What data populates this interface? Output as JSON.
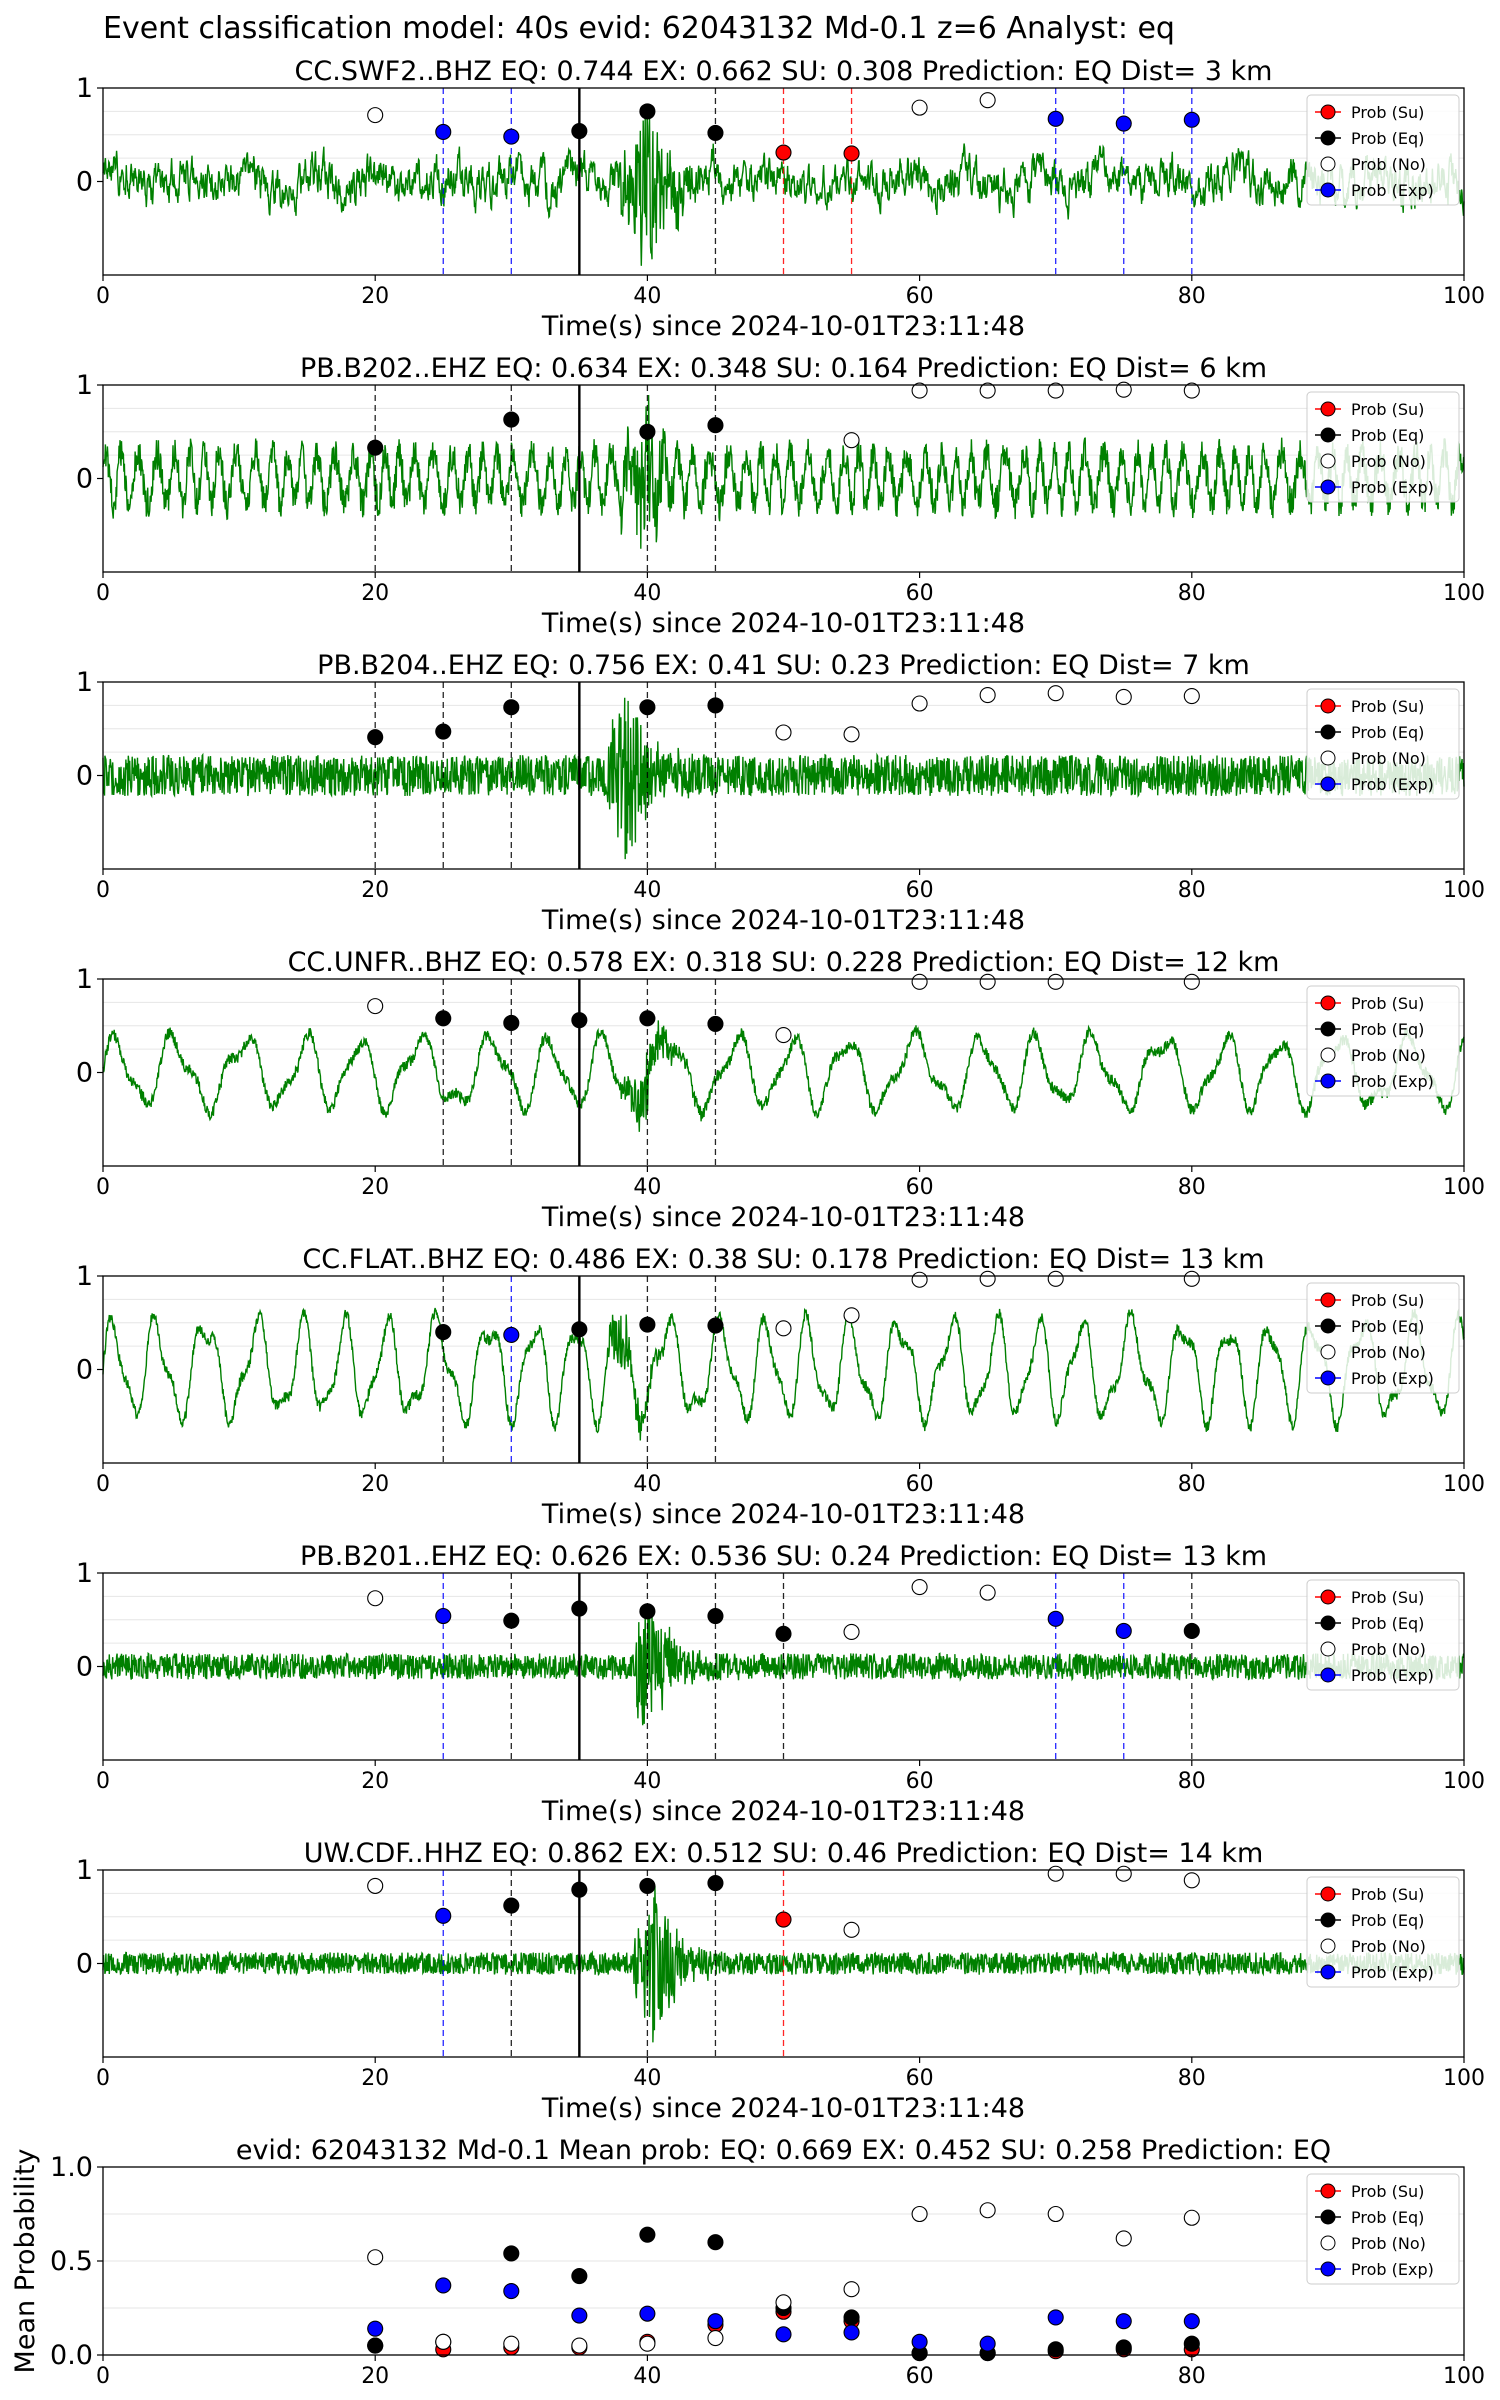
{
  "figure_title": "Event classification model: 40s evid: 62043132 Md-0.1 z=6 Analyst: eq",
  "colors": {
    "waveform": "#008000",
    "su": "#ff0000",
    "eq": "#000000",
    "no": "#ffffff",
    "exp": "#0000ff",
    "pick_line": "#000000"
  },
  "legend_labels": [
    "Prob (Su)",
    "Prob (Eq)",
    "Prob (No)",
    "Prob (Exp)"
  ],
  "chart_data": [
    {
      "type": "scatter",
      "title": "CC.SWF2..BHZ   EQ: 0.744  EX: 0.662  SU: 0.308   Prediction: EQ    Dist= 3 km",
      "xlabel": "Time(s) since 2024-10-01T23:11:48",
      "ylabel": "",
      "xlim": [
        0,
        100
      ],
      "ylim": [
        -1,
        1
      ],
      "xticks": [
        "0",
        "20",
        "40",
        "60",
        "80",
        "100"
      ],
      "yticks": [
        "1",
        "0"
      ],
      "pick_time": 35,
      "waveform": {
        "style": "broadband",
        "burst_start": 38,
        "burst_peak": 40,
        "amp": 0.28,
        "burst_amp": 0.9
      },
      "series": [
        {
          "name": "Prob (Su)",
          "x": [
            50,
            55
          ],
          "y": [
            0.31,
            0.3
          ]
        },
        {
          "name": "Prob (Eq)",
          "x": [
            35,
            40,
            45
          ],
          "y": [
            0.54,
            0.75,
            0.52
          ]
        },
        {
          "name": "Prob (No)",
          "x": [
            20,
            60,
            65
          ],
          "y": [
            0.71,
            0.79,
            0.87
          ]
        },
        {
          "name": "Prob (Exp)",
          "x": [
            25,
            30,
            70,
            75,
            80
          ],
          "y": [
            0.53,
            0.48,
            0.67,
            0.62,
            0.66
          ]
        }
      ],
      "vlines": [
        {
          "x": 25,
          "color": "exp"
        },
        {
          "x": 30,
          "color": "exp"
        },
        {
          "x": 45,
          "color": "eq"
        },
        {
          "x": 50,
          "color": "su"
        },
        {
          "x": 55,
          "color": "su"
        },
        {
          "x": 70,
          "color": "exp"
        },
        {
          "x": 75,
          "color": "exp"
        },
        {
          "x": 80,
          "color": "exp"
        }
      ]
    },
    {
      "type": "scatter",
      "title": "PB.B202..EHZ   EQ: 0.634  EX: 0.348  SU: 0.164   Prediction: EQ    Dist= 6 km",
      "xlabel": "Time(s) since 2024-10-01T23:11:48",
      "ylabel": "",
      "xlim": [
        0,
        100
      ],
      "ylim": [
        -1,
        1
      ],
      "xticks": [
        "0",
        "20",
        "40",
        "60",
        "80",
        "100"
      ],
      "yticks": [
        "1",
        "0"
      ],
      "pick_time": 35,
      "waveform": {
        "style": "oscillating",
        "period": 1.2,
        "burst_start": 38,
        "burst_peak": 40,
        "amp": 0.38,
        "burst_amp": 0.75
      },
      "series": [
        {
          "name": "Prob (Su)",
          "x": [],
          "y": []
        },
        {
          "name": "Prob (Eq)",
          "x": [
            20,
            30,
            40,
            45
          ],
          "y": [
            0.33,
            0.63,
            0.5,
            0.57
          ]
        },
        {
          "name": "Prob (No)",
          "x": [
            55,
            60,
            65,
            70,
            75,
            80
          ],
          "y": [
            0.41,
            0.94,
            0.94,
            0.94,
            0.95,
            0.94
          ]
        },
        {
          "name": "Prob (Exp)",
          "x": [],
          "y": []
        }
      ],
      "vlines": [
        {
          "x": 20,
          "color": "eq"
        },
        {
          "x": 30,
          "color": "eq"
        },
        {
          "x": 40,
          "color": "eq"
        },
        {
          "x": 45,
          "color": "eq"
        }
      ]
    },
    {
      "type": "scatter",
      "title": "PB.B204..EHZ   EQ: 0.756  EX: 0.41  SU: 0.23   Prediction: EQ    Dist= 7 km",
      "xlabel": "Time(s) since 2024-10-01T23:11:48",
      "ylabel": "",
      "xlim": [
        0,
        100
      ],
      "ylim": [
        -1,
        1
      ],
      "xticks": [
        "0",
        "20",
        "40",
        "60",
        "80",
        "100"
      ],
      "yticks": [
        "1",
        "0"
      ],
      "pick_time": 35,
      "waveform": {
        "style": "noisy",
        "burst_start": 37,
        "burst_peak": 38.5,
        "amp": 0.22,
        "burst_amp": 0.9
      },
      "series": [
        {
          "name": "Prob (Su)",
          "x": [],
          "y": []
        },
        {
          "name": "Prob (Eq)",
          "x": [
            20,
            25,
            30,
            40,
            45
          ],
          "y": [
            0.41,
            0.47,
            0.73,
            0.73,
            0.75
          ]
        },
        {
          "name": "Prob (No)",
          "x": [
            50,
            55,
            60,
            65,
            70,
            75,
            80
          ],
          "y": [
            0.46,
            0.44,
            0.77,
            0.86,
            0.88,
            0.84,
            0.85
          ]
        },
        {
          "name": "Prob (Exp)",
          "x": [],
          "y": []
        }
      ],
      "vlines": [
        {
          "x": 20,
          "color": "eq"
        },
        {
          "x": 25,
          "color": "eq"
        },
        {
          "x": 30,
          "color": "eq"
        },
        {
          "x": 40,
          "color": "eq"
        },
        {
          "x": 45,
          "color": "eq"
        }
      ]
    },
    {
      "type": "scatter",
      "title": "CC.UNFR..BHZ   EQ: 0.578  EX: 0.318  SU: 0.228   Prediction: EQ    Dist= 12 km",
      "xlabel": "Time(s) since 2024-10-01T23:11:48",
      "ylabel": "",
      "xlim": [
        0,
        100
      ],
      "ylim": [
        -1,
        1
      ],
      "xticks": [
        "0",
        "20",
        "40",
        "60",
        "80",
        "100"
      ],
      "yticks": [
        "1",
        "0"
      ],
      "pick_time": 35,
      "waveform": {
        "style": "swell",
        "period": 4.5,
        "burst_start": 38,
        "burst_peak": 40,
        "amp": 0.45,
        "burst_amp": 0.35
      },
      "series": [
        {
          "name": "Prob (Su)",
          "x": [],
          "y": []
        },
        {
          "name": "Prob (Eq)",
          "x": [
            25,
            30,
            35,
            40,
            45
          ],
          "y": [
            0.58,
            0.53,
            0.56,
            0.58,
            0.52
          ]
        },
        {
          "name": "Prob (No)",
          "x": [
            20,
            50,
            60,
            65,
            70,
            80
          ],
          "y": [
            0.71,
            0.4,
            0.97,
            0.97,
            0.97,
            0.97
          ]
        },
        {
          "name": "Prob (Exp)",
          "x": [],
          "y": []
        }
      ],
      "vlines": [
        {
          "x": 25,
          "color": "eq"
        },
        {
          "x": 30,
          "color": "eq"
        },
        {
          "x": 40,
          "color": "eq"
        },
        {
          "x": 45,
          "color": "eq"
        }
      ]
    },
    {
      "type": "scatter",
      "title": "CC.FLAT..BHZ   EQ: 0.486  EX: 0.38  SU: 0.178   Prediction: EQ    Dist= 13 km",
      "xlabel": "Time(s) since 2024-10-01T23:11:48",
      "ylabel": "",
      "xlim": [
        0,
        100
      ],
      "ylim": [
        -1,
        1
      ],
      "xticks": [
        "0",
        "20",
        "40",
        "60",
        "80",
        "100"
      ],
      "yticks": [
        "1",
        "0"
      ],
      "pick_time": 35,
      "waveform": {
        "style": "swell",
        "period": 3.4,
        "burst_start": 37,
        "burst_peak": 38,
        "amp": 0.62,
        "burst_amp": 0.35
      },
      "series": [
        {
          "name": "Prob (Su)",
          "x": [],
          "y": []
        },
        {
          "name": "Prob (Eq)",
          "x": [
            25,
            35,
            40,
            45
          ],
          "y": [
            0.4,
            0.43,
            0.48,
            0.47
          ]
        },
        {
          "name": "Prob (No)",
          "x": [
            50,
            55,
            60,
            65,
            70,
            80
          ],
          "y": [
            0.44,
            0.58,
            0.96,
            0.97,
            0.97,
            0.97
          ]
        },
        {
          "name": "Prob (Exp)",
          "x": [
            30
          ],
          "y": [
            0.37
          ]
        }
      ],
      "vlines": [
        {
          "x": 25,
          "color": "eq"
        },
        {
          "x": 30,
          "color": "exp"
        },
        {
          "x": 40,
          "color": "eq"
        },
        {
          "x": 45,
          "color": "eq"
        }
      ]
    },
    {
      "type": "scatter",
      "title": "PB.B201..EHZ   EQ: 0.626  EX: 0.536  SU: 0.24   Prediction: EQ    Dist= 13 km",
      "xlabel": "Time(s) since 2024-10-01T23:11:48",
      "ylabel": "",
      "xlim": [
        0,
        100
      ],
      "ylim": [
        -1,
        1
      ],
      "xticks": [
        "0",
        "20",
        "40",
        "60",
        "80",
        "100"
      ],
      "yticks": [
        "1",
        "0"
      ],
      "pick_time": 35,
      "waveform": {
        "style": "noisy",
        "burst_start": 39,
        "burst_peak": 40,
        "amp": 0.14,
        "burst_amp": 0.85
      },
      "series": [
        {
          "name": "Prob (Su)",
          "x": [],
          "y": []
        },
        {
          "name": "Prob (Eq)",
          "x": [
            30,
            35,
            40,
            45,
            50,
            80
          ],
          "y": [
            0.49,
            0.62,
            0.59,
            0.54,
            0.35,
            0.38
          ]
        },
        {
          "name": "Prob (No)",
          "x": [
            20,
            55,
            60,
            65
          ],
          "y": [
            0.73,
            0.37,
            0.85,
            0.79
          ]
        },
        {
          "name": "Prob (Exp)",
          "x": [
            25,
            70,
            75
          ],
          "y": [
            0.54,
            0.51,
            0.38
          ]
        }
      ],
      "vlines": [
        {
          "x": 25,
          "color": "exp"
        },
        {
          "x": 30,
          "color": "eq"
        },
        {
          "x": 40,
          "color": "eq"
        },
        {
          "x": 45,
          "color": "eq"
        },
        {
          "x": 50,
          "color": "eq"
        },
        {
          "x": 70,
          "color": "exp"
        },
        {
          "x": 75,
          "color": "exp"
        },
        {
          "x": 80,
          "color": "eq"
        }
      ]
    },
    {
      "type": "scatter",
      "title": "UW.CDF..HHZ   EQ: 0.862  EX: 0.512  SU: 0.46   Prediction: EQ    Dist= 14 km",
      "xlabel": "Time(s) since 2024-10-01T23:11:48",
      "ylabel": "",
      "xlim": [
        0,
        100
      ],
      "ylim": [
        -1,
        1
      ],
      "xticks": [
        "0",
        "20",
        "40",
        "60",
        "80",
        "100"
      ],
      "yticks": [
        "1",
        "0"
      ],
      "pick_time": 35,
      "waveform": {
        "style": "noisy",
        "burst_start": 39,
        "burst_peak": 40.5,
        "amp": 0.12,
        "burst_amp": 0.85
      },
      "series": [
        {
          "name": "Prob (Su)",
          "x": [
            50
          ],
          "y": [
            0.47
          ]
        },
        {
          "name": "Prob (Eq)",
          "x": [
            30,
            35,
            40,
            45
          ],
          "y": [
            0.62,
            0.79,
            0.83,
            0.86
          ]
        },
        {
          "name": "Prob (No)",
          "x": [
            20,
            55,
            70,
            75,
            80
          ],
          "y": [
            0.83,
            0.36,
            0.96,
            0.96,
            0.89
          ]
        },
        {
          "name": "Prob (Exp)",
          "x": [
            25
          ],
          "y": [
            0.51
          ]
        }
      ],
      "vlines": [
        {
          "x": 25,
          "color": "exp"
        },
        {
          "x": 30,
          "color": "eq"
        },
        {
          "x": 40,
          "color": "eq"
        },
        {
          "x": 45,
          "color": "eq"
        },
        {
          "x": 50,
          "color": "su"
        }
      ]
    },
    {
      "type": "scatter",
      "title": "evid: 62043132  Md-0.1   Mean prob:   EQ: 0.669  EX: 0.452  SU: 0.258   Prediction: EQ",
      "xlabel": "",
      "ylabel": "Mean Probability",
      "xlim": [
        0,
        100
      ],
      "ylim": [
        0,
        1
      ],
      "xticks": [
        "0",
        "20",
        "40",
        "60",
        "80",
        "100"
      ],
      "yticks": [
        "0.0",
        "0.5",
        "1.0"
      ],
      "series": [
        {
          "name": "Prob (Su)",
          "x": [
            20,
            25,
            30,
            35,
            40,
            45,
            50,
            55,
            60,
            65,
            70,
            75,
            80
          ],
          "y": [
            0.05,
            0.03,
            0.04,
            0.04,
            0.07,
            0.16,
            0.23,
            0.18,
            0.01,
            0.01,
            0.02,
            0.03,
            0.03
          ]
        },
        {
          "name": "Prob (Eq)",
          "x": [
            20,
            25,
            30,
            35,
            40,
            45,
            50,
            55,
            60,
            65,
            70,
            75,
            80
          ],
          "y": [
            0.05,
            0.07,
            0.54,
            0.42,
            0.64,
            0.6,
            0.25,
            0.2,
            0.01,
            0.01,
            0.03,
            0.04,
            0.06
          ]
        },
        {
          "name": "Prob (No)",
          "x": [
            20,
            25,
            30,
            35,
            40,
            45,
            50,
            55,
            60,
            65,
            70,
            75,
            80
          ],
          "y": [
            0.52,
            0.07,
            0.06,
            0.05,
            0.06,
            0.09,
            0.28,
            0.35,
            0.75,
            0.77,
            0.75,
            0.62,
            0.73
          ]
        },
        {
          "name": "Prob (Exp)",
          "x": [
            20,
            25,
            30,
            35,
            40,
            45,
            50,
            55,
            60,
            65,
            70,
            75,
            80
          ],
          "y": [
            0.14,
            0.37,
            0.34,
            0.21,
            0.22,
            0.18,
            0.11,
            0.12,
            0.07,
            0.06,
            0.2,
            0.18,
            0.18
          ]
        }
      ],
      "vlines": []
    }
  ]
}
